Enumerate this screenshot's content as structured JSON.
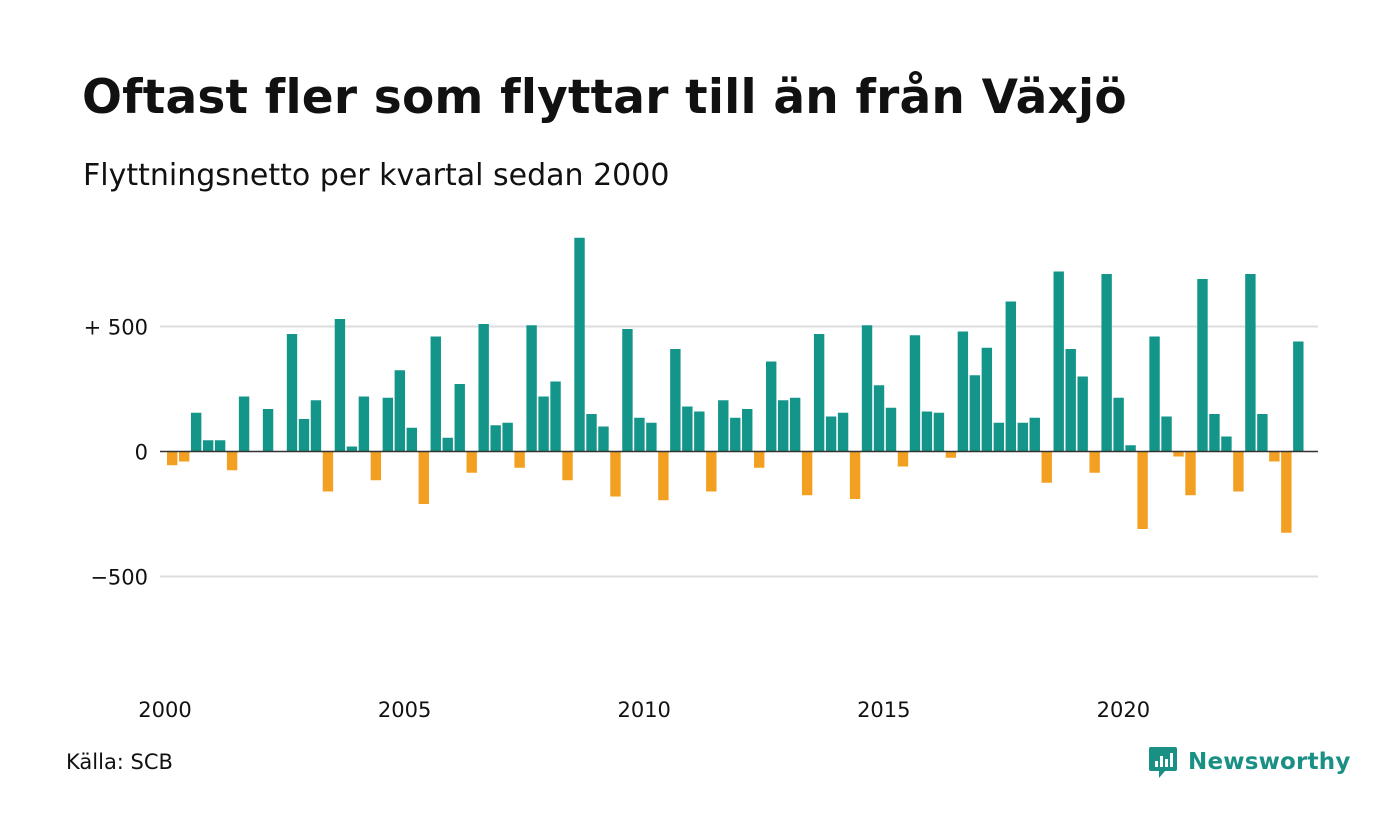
{
  "title": "Oftast fler som flyttar till än från Växjö",
  "subtitle": "Flyttningsnetto per kvartal sedan 2000",
  "source": "Källa: SCB",
  "logo_text": "Newsworthy",
  "colors": {
    "positive": "#14958a",
    "negative": "#f3a022",
    "grid": "#dddddd",
    "axis": "#333333",
    "logo": "#1a8f84"
  },
  "chart_data": {
    "type": "bar",
    "x_start": "2000-Q1",
    "x_ticks": [
      "2000",
      "2005",
      "2010",
      "2015",
      "2020"
    ],
    "y_ticks": [
      "−500",
      "0",
      "+ 500"
    ],
    "ylim": [
      -850,
      880
    ],
    "grid": true,
    "values": [
      -55,
      -40,
      155,
      45,
      45,
      -75,
      220,
      0,
      170,
      0,
      470,
      130,
      205,
      -160,
      530,
      20,
      220,
      -115,
      215,
      325,
      95,
      -210,
      460,
      55,
      270,
      -85,
      510,
      105,
      115,
      -65,
      505,
      220,
      280,
      -115,
      855,
      150,
      100,
      -180,
      490,
      135,
      115,
      -195,
      410,
      180,
      160,
      -160,
      205,
      135,
      170,
      -65,
      360,
      205,
      215,
      -175,
      470,
      140,
      155,
      -190,
      505,
      265,
      175,
      -60,
      465,
      160,
      155,
      -25,
      480,
      305,
      415,
      115,
      600,
      115,
      135,
      -125,
      720,
      410,
      300,
      -85,
      710,
      215,
      25,
      -310,
      460,
      140,
      -20,
      -175,
      690,
      150,
      60,
      -160,
      710,
      150,
      -40,
      -325,
      440
    ]
  }
}
